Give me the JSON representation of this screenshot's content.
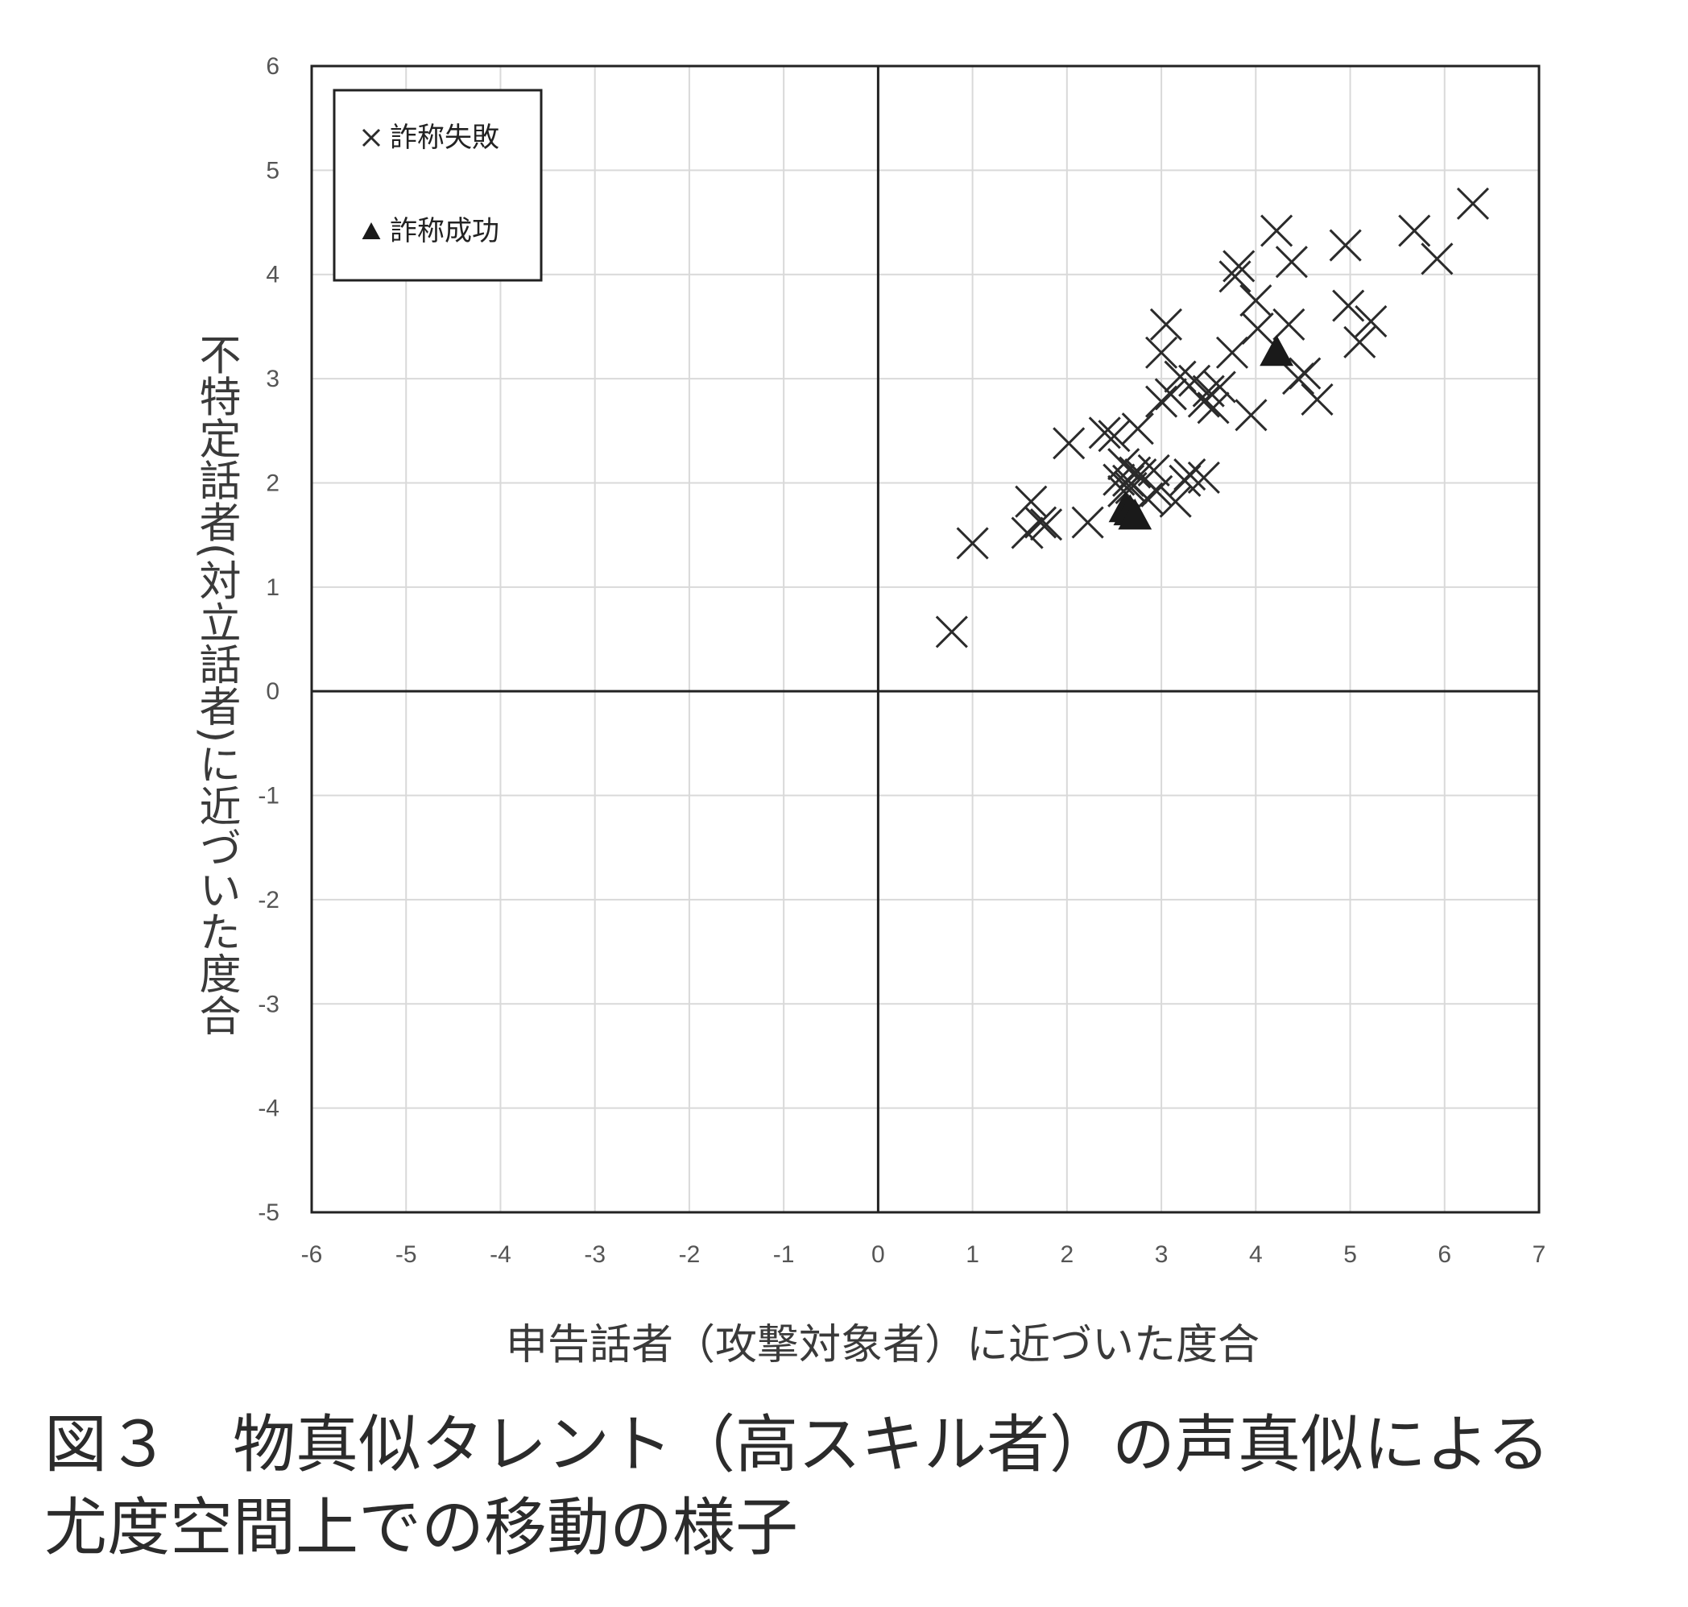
{
  "chart_data": {
    "type": "scatter",
    "xlabel": "申告話者（攻撃対象者）に近づいた度合",
    "ylabel": "不特定話者(対立話者)に近づいた度合",
    "xlim": [
      -6,
      7
    ],
    "ylim": [
      -5,
      6
    ],
    "xticks": [
      "-6",
      "-5",
      "-4",
      "-3",
      "-2",
      "-1",
      "0",
      "1",
      "2",
      "3",
      "4",
      "5",
      "6",
      "7"
    ],
    "yticks": [
      "6",
      "5",
      "4",
      "3",
      "2",
      "1",
      "0",
      "-1",
      "-2",
      "-3",
      "-4",
      "-5"
    ],
    "grid": true,
    "legend_position": "top-left",
    "series": [
      {
        "name": "詐称失敗",
        "marker": "x",
        "points": [
          [
            0.78,
            0.57
          ],
          [
            1.0,
            1.42
          ],
          [
            1.58,
            1.52
          ],
          [
            1.62,
            1.82
          ],
          [
            1.72,
            1.62
          ],
          [
            1.78,
            1.6
          ],
          [
            2.02,
            2.38
          ],
          [
            2.22,
            1.62
          ],
          [
            2.4,
            2.48
          ],
          [
            2.5,
            2.45
          ],
          [
            2.55,
            2.03
          ],
          [
            2.6,
            1.92
          ],
          [
            2.6,
            2.18
          ],
          [
            2.65,
            2.02
          ],
          [
            2.68,
            1.95
          ],
          [
            2.72,
            2.1
          ],
          [
            2.75,
            2.52
          ],
          [
            2.78,
            2.08
          ],
          [
            2.85,
            1.85
          ],
          [
            2.92,
            2.12
          ],
          [
            2.95,
            1.92
          ],
          [
            3.0,
            3.25
          ],
          [
            3.0,
            2.78
          ],
          [
            3.05,
            3.52
          ],
          [
            3.1,
            2.85
          ],
          [
            3.15,
            1.82
          ],
          [
            3.2,
            3.02
          ],
          [
            3.25,
            2.02
          ],
          [
            3.3,
            2.08
          ],
          [
            3.35,
            2.98
          ],
          [
            3.45,
            2.05
          ],
          [
            3.45,
            2.78
          ],
          [
            3.5,
            2.88
          ],
          [
            3.55,
            2.72
          ],
          [
            3.62,
            2.92
          ],
          [
            3.75,
            3.25
          ],
          [
            3.78,
            3.98
          ],
          [
            3.82,
            4.08
          ],
          [
            3.95,
            2.65
          ],
          [
            4.0,
            3.75
          ],
          [
            4.02,
            3.48
          ],
          [
            4.22,
            4.42
          ],
          [
            4.35,
            3.52
          ],
          [
            4.38,
            4.12
          ],
          [
            4.45,
            3.0
          ],
          [
            4.52,
            3.05
          ],
          [
            4.65,
            2.8
          ],
          [
            4.95,
            4.28
          ],
          [
            4.98,
            3.7
          ],
          [
            5.1,
            3.35
          ],
          [
            5.22,
            3.55
          ],
          [
            5.68,
            4.42
          ],
          [
            5.92,
            4.15
          ],
          [
            6.3,
            4.68
          ]
        ]
      },
      {
        "name": "詐称成功",
        "marker": "triangle",
        "points": [
          [
            2.62,
            1.75
          ],
          [
            2.67,
            1.72
          ],
          [
            2.72,
            1.68
          ],
          [
            4.22,
            3.25
          ]
        ]
      }
    ]
  },
  "caption": {
    "line1": "図３　物真似タレント（高スキル者）の声真似による",
    "line2": "尤度空間上での移動の様子"
  }
}
